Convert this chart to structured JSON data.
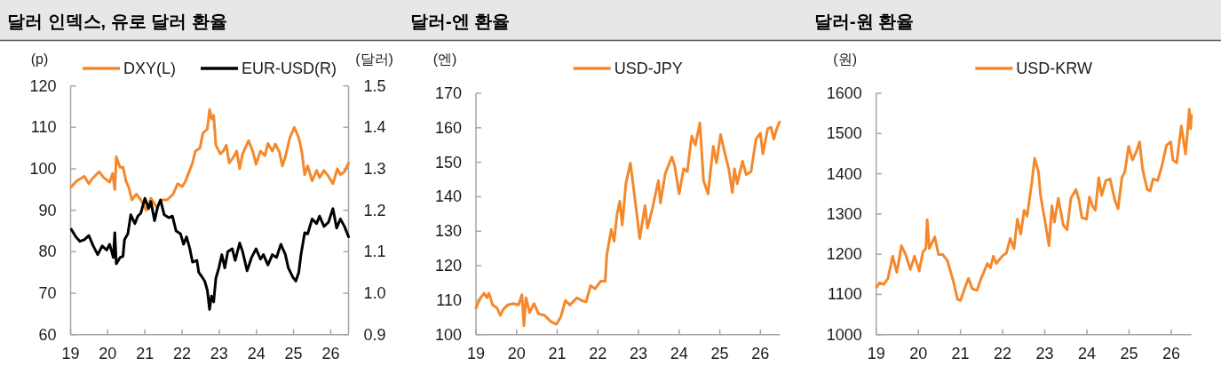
{
  "chart_data": [
    {
      "type": "line",
      "title": "달러 인덱스, 유로 달러 환율",
      "ylabel": "(p)",
      "y2label": "(달러)",
      "legend": "top",
      "xlim": [
        2019,
        2026.48
      ],
      "xticks": [
        {
          "value": 2019,
          "label": "19"
        },
        {
          "value": 2020,
          "label": "20"
        },
        {
          "value": 2021,
          "label": "21"
        },
        {
          "value": 2022,
          "label": "22"
        },
        {
          "value": 2023,
          "label": "23"
        },
        {
          "value": 2024,
          "label": "24"
        },
        {
          "value": 2025,
          "label": "25"
        },
        {
          "value": 2026,
          "label": "26"
        }
      ],
      "ylim": [
        60,
        120
      ],
      "yticks": [
        60,
        70,
        80,
        90,
        100,
        110,
        120
      ],
      "y2lim": [
        0.9,
        1.5
      ],
      "y2ticks": [
        0.9,
        {
          "value": 1.0,
          "label": "1.0"
        },
        1.1,
        1.2,
        1.3,
        1.4,
        1.5
      ],
      "series": [
        {
          "name": "DXY(L)",
          "color": "#f4882b",
          "x": [
            2019.02,
            2019.17,
            2019.37,
            2019.49,
            2019.57,
            2019.77,
            2019.89,
            2020.05,
            2020.13,
            2020.19,
            2020.23,
            2020.33,
            2020.41,
            2020.49,
            2020.57,
            2020.65,
            2020.77,
            2020.89,
            2021.04,
            2021.16,
            2021.32,
            2021.44,
            2021.6,
            2021.76,
            2021.88,
            2022.0,
            2022.08,
            2022.16,
            2022.28,
            2022.36,
            2022.48,
            2022.56,
            2022.68,
            2022.74,
            2022.8,
            2022.85,
            2022.91,
            2023.03,
            2023.11,
            2023.19,
            2023.27,
            2023.39,
            2023.47,
            2023.55,
            2023.63,
            2023.79,
            2023.91,
            2023.99,
            2024.11,
            2024.23,
            2024.31,
            2024.43,
            2024.51,
            2024.62,
            2024.7,
            2024.78,
            2024.9,
            2025.02,
            2025.14,
            2025.22,
            2025.3,
            2025.38,
            2025.5,
            2025.62,
            2025.7,
            2025.82,
            2025.94,
            2026.06,
            2026.18,
            2026.26,
            2026.37,
            2026.48
          ],
          "values": [
            95.7,
            97.1,
            98.2,
            96.4,
            97.5,
            99.3,
            97.9,
            96.8,
            98.9,
            95.0,
            102.9,
            100.4,
            100.4,
            97.1,
            95.4,
            92.5,
            93.9,
            92.5,
            90.0,
            92.9,
            90.7,
            92.5,
            92.5,
            93.9,
            96.4,
            95.7,
            96.8,
            98.6,
            101.4,
            104.3,
            105.0,
            108.6,
            109.6,
            114.3,
            112.0,
            112.9,
            105.7,
            103.6,
            104.3,
            105.7,
            101.4,
            102.9,
            104.3,
            100.0,
            103.6,
            106.8,
            104.0,
            101.1,
            104.3,
            103.2,
            106.1,
            104.3,
            106.0,
            104.0,
            100.7,
            102.9,
            107.5,
            110.0,
            107.5,
            104.3,
            98.6,
            100.7,
            97.1,
            99.6,
            97.9,
            99.6,
            98.2,
            96.4,
            100.0,
            98.6,
            99.3,
            101.4
          ]
        },
        {
          "name": "EUR-USD(R)",
          "color": "#000000",
          "axis": "y2",
          "x": [
            2019.02,
            2019.14,
            2019.25,
            2019.37,
            2019.49,
            2019.61,
            2019.73,
            2019.85,
            2019.97,
            2020.05,
            2020.15,
            2020.19,
            2020.23,
            2020.33,
            2020.41,
            2020.45,
            2020.54,
            2020.62,
            2020.73,
            2020.81,
            2020.89,
            2021.0,
            2021.1,
            2021.16,
            2021.26,
            2021.34,
            2021.42,
            2021.52,
            2021.64,
            2021.74,
            2021.84,
            2021.96,
            2022.04,
            2022.12,
            2022.21,
            2022.28,
            2022.4,
            2022.45,
            2022.56,
            2022.61,
            2022.68,
            2022.74,
            2022.79,
            2022.85,
            2022.91,
            2022.99,
            2023.07,
            2023.15,
            2023.23,
            2023.35,
            2023.43,
            2023.55,
            2023.63,
            2023.75,
            2023.87,
            2023.99,
            2024.11,
            2024.19,
            2024.31,
            2024.43,
            2024.54,
            2024.66,
            2024.78,
            2024.86,
            2024.98,
            2025.06,
            2025.14,
            2025.2,
            2025.3,
            2025.38,
            2025.5,
            2025.62,
            2025.7,
            2025.82,
            2025.94,
            2026.06,
            2026.16,
            2026.26,
            2026.37,
            2026.48
          ],
          "values": [
            1.154,
            1.136,
            1.125,
            1.129,
            1.139,
            1.114,
            1.093,
            1.114,
            1.104,
            1.118,
            1.086,
            1.146,
            1.071,
            1.086,
            1.089,
            1.129,
            1.143,
            1.189,
            1.168,
            1.186,
            1.193,
            1.229,
            1.204,
            1.221,
            1.175,
            1.207,
            1.225,
            1.189,
            1.182,
            1.186,
            1.15,
            1.143,
            1.118,
            1.136,
            1.107,
            1.075,
            1.079,
            1.05,
            1.036,
            1.029,
            1.007,
            0.961,
            0.993,
            0.979,
            1.036,
            1.061,
            1.093,
            1.061,
            1.1,
            1.107,
            1.079,
            1.121,
            1.1,
            1.054,
            1.086,
            1.107,
            1.082,
            1.093,
            1.068,
            1.093,
            1.086,
            1.118,
            1.093,
            1.061,
            1.039,
            1.029,
            1.05,
            1.093,
            1.146,
            1.143,
            1.179,
            1.168,
            1.186,
            1.161,
            1.171,
            1.204,
            1.157,
            1.179,
            1.161,
            1.136
          ]
        }
      ]
    },
    {
      "type": "line",
      "title": "달러-엔 환율",
      "ylabel": "(엔)",
      "legend": "top",
      "xlim": [
        2019,
        2026.48
      ],
      "xticks": [
        {
          "value": 2019,
          "label": "19"
        },
        {
          "value": 2020,
          "label": "20"
        },
        {
          "value": 2021,
          "label": "21"
        },
        {
          "value": 2022,
          "label": "22"
        },
        {
          "value": 2023,
          "label": "23"
        },
        {
          "value": 2024,
          "label": "24"
        },
        {
          "value": 2025,
          "label": "25"
        },
        {
          "value": 2026,
          "label": "26"
        }
      ],
      "ylim": [
        100,
        170
      ],
      "yticks": [
        100,
        110,
        120,
        130,
        140,
        150,
        160,
        170
      ],
      "series": [
        {
          "name": "USD-JPY",
          "color": "#f4882b",
          "x": [
            2019.0,
            2019.09,
            2019.2,
            2019.27,
            2019.32,
            2019.41,
            2019.52,
            2019.6,
            2019.67,
            2019.78,
            2019.92,
            2020.05,
            2020.13,
            2020.18,
            2020.23,
            2020.32,
            2020.43,
            2020.54,
            2020.69,
            2020.83,
            2020.98,
            2021.09,
            2021.2,
            2021.31,
            2021.49,
            2021.6,
            2021.71,
            2021.82,
            2021.93,
            2022.07,
            2022.18,
            2022.22,
            2022.33,
            2022.4,
            2022.47,
            2022.54,
            2022.6,
            2022.69,
            2022.8,
            2022.91,
            2023.03,
            2023.16,
            2023.22,
            2023.34,
            2023.49,
            2023.54,
            2023.66,
            2023.82,
            2023.89,
            2024.0,
            2024.11,
            2024.2,
            2024.31,
            2024.4,
            2024.51,
            2024.6,
            2024.71,
            2024.84,
            2024.92,
            2025.02,
            2025.13,
            2025.22,
            2025.31,
            2025.36,
            2025.43,
            2025.56,
            2025.65,
            2025.77,
            2025.89,
            2026.0,
            2026.06,
            2026.18,
            2026.26,
            2026.33,
            2026.4,
            2026.47
          ],
          "values": [
            107.7,
            110.3,
            112.0,
            110.7,
            112.0,
            108.6,
            107.7,
            105.6,
            107.3,
            108.6,
            109.0,
            108.6,
            111.6,
            102.6,
            110.7,
            106.4,
            109.0,
            106.0,
            105.6,
            103.9,
            103.0,
            105.2,
            109.9,
            108.6,
            110.7,
            109.9,
            109.5,
            114.2,
            113.3,
            115.5,
            115.5,
            123.2,
            130.5,
            127.1,
            134.8,
            138.7,
            131.8,
            143.8,
            149.8,
            139.5,
            127.9,
            137.4,
            130.9,
            136.5,
            144.7,
            138.2,
            146.8,
            151.5,
            149.0,
            140.8,
            148.1,
            147.3,
            157.6,
            155.0,
            161.4,
            144.7,
            140.8,
            154.6,
            149.8,
            158.0,
            152.4,
            148.1,
            141.2,
            148.1,
            143.8,
            150.3,
            146.4,
            147.3,
            156.7,
            158.4,
            152.4,
            159.7,
            160.1,
            156.7,
            159.7,
            161.7
          ]
        }
      ]
    },
    {
      "type": "line",
      "title": "달러-원 환율",
      "ylabel": "(원)",
      "legend": "top",
      "xlim": [
        2019,
        2026.48
      ],
      "xticks": [
        {
          "value": 2019,
          "label": "19"
        },
        {
          "value": 2020,
          "label": "20"
        },
        {
          "value": 2021,
          "label": "21"
        },
        {
          "value": 2022,
          "label": "22"
        },
        {
          "value": 2023,
          "label": "23"
        },
        {
          "value": 2024,
          "label": "24"
        },
        {
          "value": 2025,
          "label": "25"
        },
        {
          "value": 2026,
          "label": "26"
        }
      ],
      "ylim": [
        1000,
        1600
      ],
      "yticks": [
        1000,
        1100,
        1200,
        1300,
        1400,
        1500,
        1600
      ],
      "series": [
        {
          "name": "USD-KRW",
          "color": "#f4882b",
          "x": [
            2019.01,
            2019.08,
            2019.18,
            2019.28,
            2019.39,
            2019.49,
            2019.6,
            2019.7,
            2019.81,
            2019.91,
            2020.02,
            2020.11,
            2020.18,
            2020.21,
            2020.26,
            2020.39,
            2020.48,
            2020.58,
            2020.69,
            2020.83,
            2020.93,
            2021.0,
            2021.11,
            2021.19,
            2021.28,
            2021.39,
            2021.49,
            2021.64,
            2021.71,
            2021.78,
            2021.85,
            2021.99,
            2022.09,
            2022.18,
            2022.27,
            2022.35,
            2022.43,
            2022.51,
            2022.58,
            2022.69,
            2022.76,
            2022.85,
            2022.9,
            2023.01,
            2023.1,
            2023.17,
            2023.23,
            2023.32,
            2023.44,
            2023.53,
            2023.62,
            2023.74,
            2023.81,
            2023.88,
            2023.99,
            2024.06,
            2024.13,
            2024.2,
            2024.28,
            2024.35,
            2024.45,
            2024.55,
            2024.66,
            2024.74,
            2024.83,
            2024.9,
            2024.99,
            2025.08,
            2025.18,
            2025.25,
            2025.32,
            2025.43,
            2025.5,
            2025.57,
            2025.68,
            2025.78,
            2025.89,
            2025.99,
            2026.04,
            2026.13,
            2026.24,
            2026.34,
            2026.39,
            2026.43,
            2026.46,
            2026.48
          ],
          "values": [
            1118,
            1129,
            1125,
            1140,
            1195,
            1155,
            1221,
            1199,
            1162,
            1195,
            1158,
            1206,
            1214,
            1286,
            1214,
            1243,
            1199,
            1199,
            1184,
            1133,
            1088,
            1085,
            1118,
            1140,
            1114,
            1110,
            1140,
            1177,
            1166,
            1195,
            1177,
            1195,
            1203,
            1239,
            1214,
            1287,
            1250,
            1309,
            1295,
            1376,
            1438,
            1405,
            1346,
            1280,
            1221,
            1320,
            1280,
            1339,
            1272,
            1261,
            1339,
            1361,
            1335,
            1291,
            1287,
            1342,
            1320,
            1309,
            1390,
            1346,
            1383,
            1387,
            1335,
            1313,
            1390,
            1405,
            1468,
            1434,
            1457,
            1479,
            1412,
            1361,
            1357,
            1387,
            1383,
            1420,
            1471,
            1479,
            1434,
            1427,
            1519,
            1449,
            1508,
            1560,
            1512,
            1545
          ]
        }
      ]
    }
  ]
}
